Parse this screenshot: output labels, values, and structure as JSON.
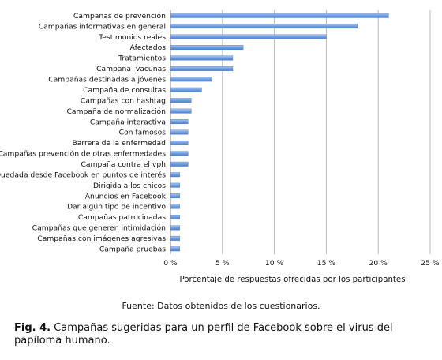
{
  "chart_data": {
    "type": "bar",
    "orientation": "horizontal",
    "categories": [
      "Campañas de prevención",
      "Campañas informativas en general",
      "Testimonios reales",
      "Afectados",
      "Tratamientos",
      "Campaña  vacunas",
      "Campañas destinadas a jóvenes",
      "Campaña de consultas",
      "Campañas con hashtag",
      "Campaña de normalización",
      "Campaña interactiva",
      "Con famosos",
      "Barrera de la enfermedad",
      "Campañas prevención de otras enfermedades",
      "Campaña contra el vph",
      "Quedada desde Facebook en puntos de interés",
      "Dirigida a los chicos",
      "Anuncios en Facebook",
      "Dar algún tipo de incentivo",
      "Campañas patrocinadas",
      "Campañas que generen intimidación",
      "Campañas con imágenes agresivas",
      "Campaña pruebas"
    ],
    "values": [
      21,
      18,
      15,
      7,
      6,
      6,
      4,
      3,
      2,
      2,
      1.7,
      1.7,
      1.7,
      1.7,
      1.7,
      0.9,
      0.9,
      0.9,
      0.9,
      0.9,
      0.9,
      0.9,
      0.9
    ],
    "xlabel": "Porcentaje de respuestas ofrecidas por los participantes",
    "ylabel": "",
    "xlim": [
      0,
      25
    ],
    "xticks": [
      0,
      5,
      10,
      15,
      20,
      25
    ],
    "xtick_labels": [
      "0 %",
      "5 %",
      "10 %",
      "15 %",
      "20 %",
      "25 %"
    ],
    "grid": "vertical",
    "bar_color": "#6f9ee2"
  },
  "source_note": "Fuente: Datos obtenidos de los cuestionarios.",
  "caption": {
    "label": "Fig. 4.",
    "text": " Campañas sugeridas para un perfil de Facebook sobre el virus del papiloma humano."
  }
}
